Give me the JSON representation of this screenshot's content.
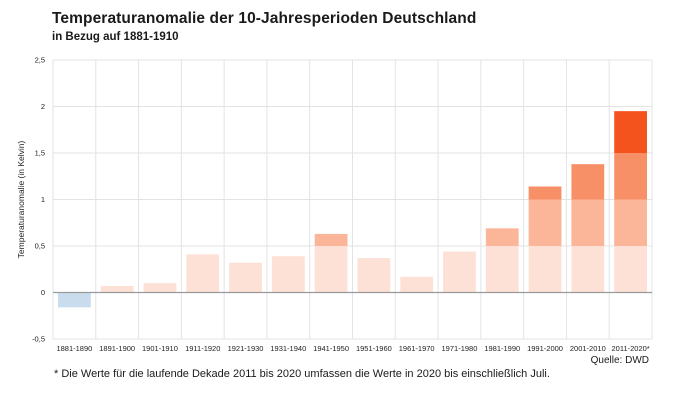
{
  "chart_data": {
    "type": "bar",
    "title": "Temperaturanomalie der 10-Jahresperioden Deutschland",
    "subtitle": "in Bezug auf 1881-1910",
    "xlabel": "",
    "ylabel": "Temperaturanomalie (in Kelvin)",
    "ylim": [
      -0.5,
      2.5
    ],
    "y_ticks": [
      -0.5,
      0,
      0.5,
      1,
      1.5,
      2,
      2.5
    ],
    "y_tick_labels": [
      "-0,5",
      "0",
      "0,5",
      "1",
      "1,5",
      "2",
      "2,5"
    ],
    "categories": [
      "1881-1890",
      "1891-1900",
      "1901-1910",
      "1911-1920",
      "1921-1930",
      "1931-1940",
      "1941-1950",
      "1951-1960",
      "1961-1970",
      "1971-1980",
      "1981-1990",
      "1991-2000",
      "2001-2010",
      "2011-2020*"
    ],
    "values": [
      -0.16,
      0.07,
      0.1,
      0.41,
      0.32,
      0.39,
      0.63,
      0.37,
      0.17,
      0.44,
      0.69,
      1.14,
      1.38,
      1.95
    ],
    "band_thresholds": [
      0.5,
      1.0,
      1.5
    ],
    "colors": {
      "negative": "#c9dcee",
      "band_0": "#fde0d6",
      "band_1": "#fbb598",
      "band_2": "#f79067",
      "band_3": "#f5531d",
      "grid": "#e3e3e3",
      "zero_line": "#9a9a9a"
    },
    "grid": true
  },
  "source": "Quelle: DWD",
  "footnote": "* Die Werte für die laufende Dekade 2011 bis 2020 umfassen die Werte in 2020 bis einschließlich Juli."
}
